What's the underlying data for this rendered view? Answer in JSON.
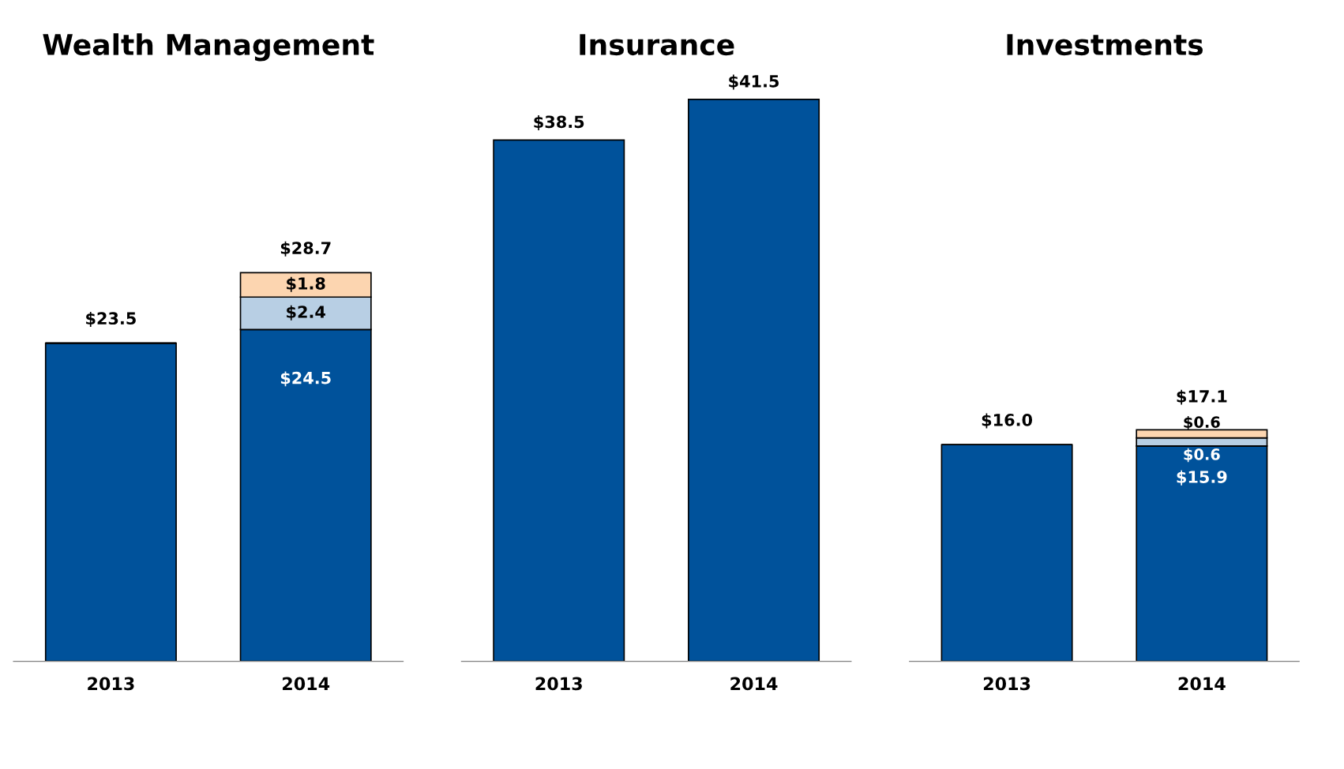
{
  "chart_data": [
    {
      "type": "bar",
      "title": "Wealth Management",
      "categories": [
        "2013",
        "2014"
      ],
      "stacked": true,
      "series": [
        {
          "color": "#00529b",
          "values": [
            23.5,
            24.5
          ],
          "value_labels": [
            null,
            "$24.5"
          ]
        },
        {
          "color": "#b8cfe4",
          "values": [
            null,
            2.4
          ],
          "value_labels": [
            null,
            "$2.4"
          ]
        },
        {
          "color": "#fcd5b0",
          "values": [
            null,
            1.8
          ],
          "value_labels": [
            null,
            "$1.8"
          ]
        }
      ],
      "totals": [
        "$23.5",
        "$28.7"
      ]
    },
    {
      "type": "bar",
      "title": "Insurance",
      "categories": [
        "2013",
        "2014"
      ],
      "series": [
        {
          "color": "#00529b",
          "values": [
            38.5,
            41.5
          ],
          "value_labels": [
            "$38.5",
            "$41.5"
          ]
        }
      ]
    },
    {
      "type": "bar",
      "title": "Investments",
      "categories": [
        "2013",
        "2014"
      ],
      "stacked": true,
      "series": [
        {
          "color": "#00529b",
          "values": [
            16.0,
            15.9
          ],
          "value_labels": [
            null,
            "$15.9"
          ]
        },
        {
          "color": "#b8cfe4",
          "values": [
            null,
            0.6
          ],
          "value_labels": [
            null,
            "$0.6"
          ]
        },
        {
          "color": "#fcd5b0",
          "values": [
            null,
            0.6
          ],
          "value_labels": [
            null,
            "$0.6"
          ]
        }
      ],
      "totals": [
        "$16.0",
        "$17.1"
      ]
    }
  ]
}
